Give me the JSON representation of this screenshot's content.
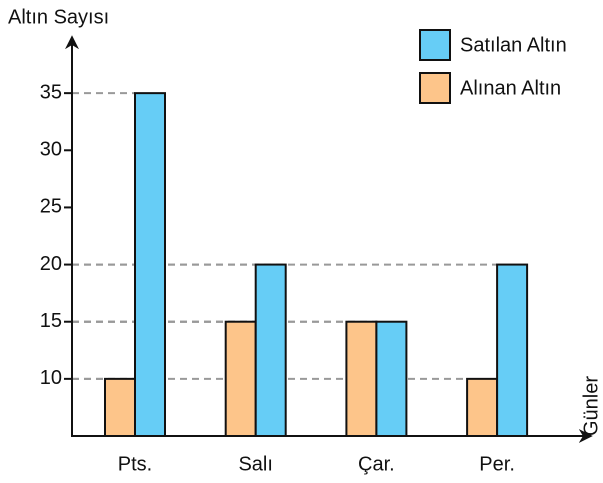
{
  "chart_data": {
    "type": "bar",
    "y_label": "Altın Sayısı",
    "x_label": "Günler",
    "categories": [
      "Pts.",
      "Salı",
      "Çar.",
      "Per."
    ],
    "series": [
      {
        "name": "Alınan Altın",
        "color": "#fdc58a",
        "values": [
          10,
          15,
          15,
          10
        ]
      },
      {
        "name": "Satılan Altın",
        "color": "#66cdf6",
        "values": [
          35,
          20,
          15,
          20
        ]
      }
    ],
    "ylim": [
      5,
      40
    ],
    "yticks": [
      10,
      15,
      20,
      25,
      30,
      35
    ],
    "grid": true
  }
}
